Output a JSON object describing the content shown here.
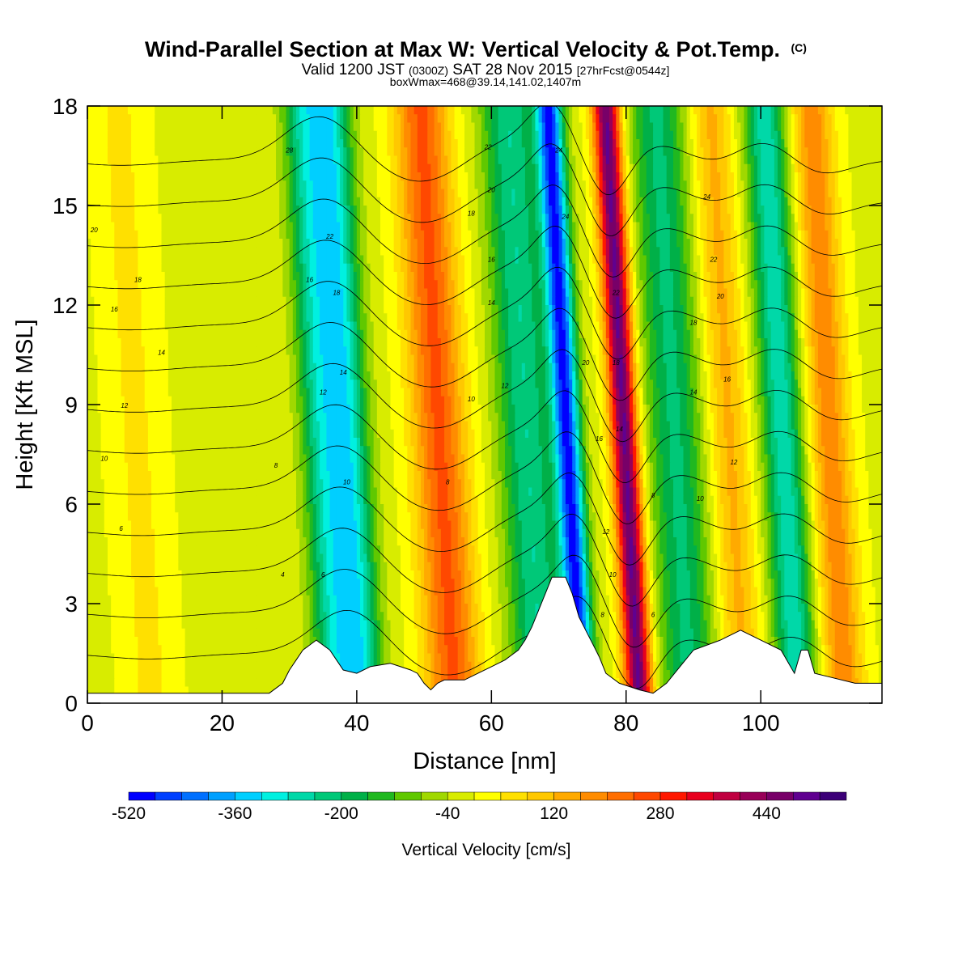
{
  "title": {
    "main": "Wind-Parallel Section at Max W: Vertical Velocity & Pot.Temp.",
    "main_suffix": "(C)",
    "line2_a": "Valid 1200 JST",
    "line2_b": "(0300Z)",
    "line2_c": "SAT 28 Nov 2015",
    "line2_d": "[27hrFcst@0544z]",
    "line3": "boxWmax=468@39.14,141.02,1407m"
  },
  "chart_data": {
    "type": "heatmap",
    "title": "Wind-Parallel Section at Max W: Vertical Velocity & Pot.Temp.",
    "xlabel": "Distance [nm]",
    "ylabel": "Height [Kft MSL]",
    "xlim": [
      0,
      118
    ],
    "ylim": [
      0,
      18
    ],
    "xticks": [
      0,
      20,
      40,
      60,
      80,
      100
    ],
    "yticks": [
      0,
      3,
      6,
      9,
      12,
      15,
      18
    ],
    "colorbar": {
      "label": "Vertical Velocity [cm/s]",
      "min": -520,
      "max": 600,
      "step": 40,
      "tick_labels": [
        "-520",
        "-360",
        "-200",
        "-40",
        "120",
        "280",
        "440"
      ],
      "tick_values": [
        -520,
        -360,
        -200,
        -40,
        120,
        280,
        440
      ],
      "colors": [
        "#0000ff",
        "#0040ff",
        "#0070ff",
        "#00a0ff",
        "#00cfff",
        "#00f0e0",
        "#00d8a8",
        "#00c878",
        "#00b048",
        "#20b820",
        "#60c800",
        "#a0d800",
        "#d8ec00",
        "#ffff00",
        "#ffe000",
        "#ffc800",
        "#ffaa00",
        "#ff8c00",
        "#ff6e00",
        "#ff4800",
        "#ff1800",
        "#e8001e",
        "#c00040",
        "#980058",
        "#780068",
        "#600090",
        "#3c0078"
      ]
    },
    "velocity_bands": [
      {
        "x": 7,
        "w": 4,
        "value": 60
      },
      {
        "x": 34.5,
        "w": 3,
        "value": -240
      },
      {
        "x": 38.5,
        "w": 3,
        "value": -280
      },
      {
        "x": 52,
        "w": 4,
        "value": 260
      },
      {
        "x": 65,
        "w": 4,
        "value": -230
      },
      {
        "x": 71,
        "w": 2,
        "value": -470
      },
      {
        "x": 79.5,
        "w": 2,
        "value": 500
      },
      {
        "x": 87,
        "w": 4,
        "value": -200
      },
      {
        "x": 95,
        "w": 3,
        "value": 140
      },
      {
        "x": 103,
        "w": 3,
        "value": -260
      },
      {
        "x": 110,
        "w": 3,
        "value": 200
      }
    ],
    "terrain": {
      "x": [
        0,
        27,
        29,
        30,
        31,
        32,
        34,
        36,
        37,
        38,
        40,
        42,
        45,
        48,
        49,
        50,
        51,
        52,
        53,
        56,
        58,
        60,
        62,
        64,
        65,
        66,
        67,
        68,
        69,
        71,
        72,
        73,
        74,
        75,
        76,
        77,
        79,
        82,
        84,
        86,
        88,
        90,
        94,
        97,
        100,
        103,
        105,
        106,
        107,
        108,
        110,
        114,
        118
      ],
      "y": [
        0.3,
        0.3,
        0.6,
        1.0,
        1.3,
        1.6,
        1.9,
        1.6,
        1.3,
        1.0,
        0.9,
        1.1,
        1.2,
        1.0,
        0.9,
        0.6,
        0.4,
        0.6,
        0.7,
        0.7,
        0.9,
        1.1,
        1.3,
        1.6,
        1.9,
        2.3,
        2.8,
        3.3,
        3.8,
        3.8,
        3.3,
        2.6,
        2.2,
        1.8,
        1.4,
        0.9,
        0.6,
        0.4,
        0.3,
        0.6,
        1.1,
        1.6,
        1.9,
        2.2,
        1.9,
        1.6,
        0.9,
        1.6,
        1.6,
        0.9,
        0.8,
        0.6,
        0.6
      ]
    },
    "isentropes_C": [
      4,
      6,
      8,
      10,
      12,
      14,
      16,
      18,
      20,
      22,
      24,
      26,
      28
    ],
    "contour_labels": [
      {
        "x": 5,
        "y": 5.2,
        "text": "6"
      },
      {
        "x": 29,
        "y": 3.8,
        "text": "4"
      },
      {
        "x": 2.5,
        "y": 7.3,
        "text": "10"
      },
      {
        "x": 5.5,
        "y": 8.9,
        "text": "12"
      },
      {
        "x": 11,
        "y": 10.5,
        "text": "14"
      },
      {
        "x": 4,
        "y": 11.8,
        "text": "16"
      },
      {
        "x": 7.5,
        "y": 12.7,
        "text": "18"
      },
      {
        "x": 1,
        "y": 14.2,
        "text": "20"
      },
      {
        "x": 30,
        "y": 16.6,
        "text": "28"
      },
      {
        "x": 28,
        "y": 7.1,
        "text": "8"
      },
      {
        "x": 36,
        "y": 14.0,
        "text": "22"
      },
      {
        "x": 33,
        "y": 12.7,
        "text": "16"
      },
      {
        "x": 37,
        "y": 12.3,
        "text": "18"
      },
      {
        "x": 38,
        "y": 9.9,
        "text": "14"
      },
      {
        "x": 35,
        "y": 9.3,
        "text": "12"
      },
      {
        "x": 38.5,
        "y": 6.6,
        "text": "10"
      },
      {
        "x": 35,
        "y": 3.8,
        "text": "6"
      },
      {
        "x": 53.5,
        "y": 6.6,
        "text": "8"
      },
      {
        "x": 57,
        "y": 9.1,
        "text": "10"
      },
      {
        "x": 62,
        "y": 9.5,
        "text": "12"
      },
      {
        "x": 60,
        "y": 12.0,
        "text": "14"
      },
      {
        "x": 60,
        "y": 13.3,
        "text": "16"
      },
      {
        "x": 57,
        "y": 14.7,
        "text": "18"
      },
      {
        "x": 60,
        "y": 15.4,
        "text": "20"
      },
      {
        "x": 59.5,
        "y": 16.7,
        "text": "22"
      },
      {
        "x": 70,
        "y": 16.6,
        "text": "24"
      },
      {
        "x": 71,
        "y": 14.6,
        "text": "24"
      },
      {
        "x": 74,
        "y": 10.2,
        "text": "20"
      },
      {
        "x": 78.5,
        "y": 12.3,
        "text": "22"
      },
      {
        "x": 78.5,
        "y": 10.2,
        "text": "18"
      },
      {
        "x": 79,
        "y": 8.2,
        "text": "14"
      },
      {
        "x": 76,
        "y": 7.9,
        "text": "16"
      },
      {
        "x": 77,
        "y": 5.1,
        "text": "12"
      },
      {
        "x": 78,
        "y": 3.8,
        "text": "10"
      },
      {
        "x": 76.5,
        "y": 2.6,
        "text": "8"
      },
      {
        "x": 84,
        "y": 2.6,
        "text": "6"
      },
      {
        "x": 84,
        "y": 6.2,
        "text": "8"
      },
      {
        "x": 91,
        "y": 6.1,
        "text": "10"
      },
      {
        "x": 96,
        "y": 7.2,
        "text": "12"
      },
      {
        "x": 90,
        "y": 9.3,
        "text": "14"
      },
      {
        "x": 95,
        "y": 9.7,
        "text": "16"
      },
      {
        "x": 90,
        "y": 11.4,
        "text": "18"
      },
      {
        "x": 94,
        "y": 12.2,
        "text": "20"
      },
      {
        "x": 93,
        "y": 13.3,
        "text": "22"
      },
      {
        "x": 92,
        "y": 15.2,
        "text": "24"
      }
    ]
  },
  "colors": {
    "axis": "#000000",
    "background": "#ffffff",
    "terrain_fill": "#ffffff",
    "contour": "#000000"
  }
}
